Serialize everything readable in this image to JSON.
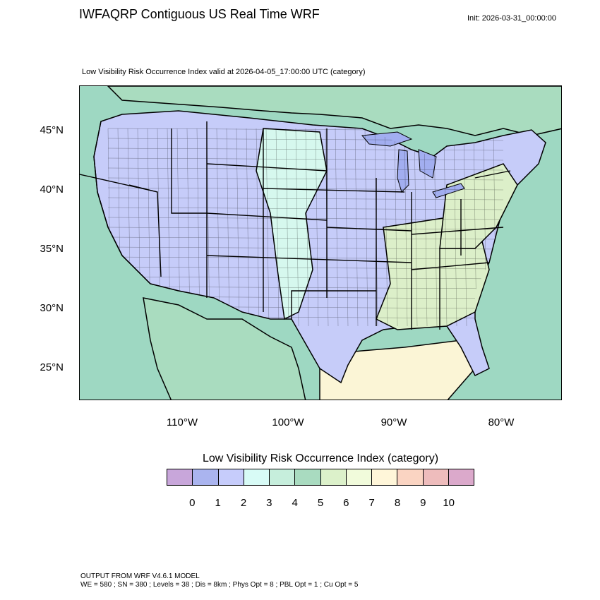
{
  "title": "IWFAQRP Contiguous US Real Time WRF",
  "init": "Init: 2026-03-31_00:00:00",
  "subtitle": "Low Visibility Risk Occurrence Index valid at 2026-04-05_17:00:00 UTC   (category)",
  "map": {
    "lat_labels": [
      "45°N",
      "40°N",
      "35°N",
      "30°N",
      "25°N"
    ],
    "lon_labels": [
      "110°W",
      "100°W",
      "90°W",
      "80°W"
    ],
    "colors": {
      "ocean": "#9ed8c2",
      "land_low": "#c6ccf9",
      "land_mid": "#d6f8ee",
      "green": "#a9dcbf",
      "light_green": "#dcefc9",
      "pale_yellow": "#fbf5d6",
      "orange": "#f7c6a8",
      "lake": "#a2aef0",
      "border": "#000000"
    }
  },
  "colorbar": {
    "title": "Low Visibility Risk Occurrence Index  (category)",
    "labels": [
      "0",
      "1",
      "2",
      "3",
      "4",
      "5",
      "6",
      "7",
      "8",
      "9",
      "10"
    ],
    "colors": [
      "#c8a6da",
      "#aab4ef",
      "#c6ccfb",
      "#d8fbf6",
      "#c6eedc",
      "#a9dbc0",
      "#dcf1ca",
      "#f1fbdb",
      "#fff6d9",
      "#fad4c2",
      "#eebcbc",
      "#dba9cb"
    ]
  },
  "footer": {
    "line1": "OUTPUT FROM WRF V4.6.1 MODEL",
    "line2": "WE = 580 ; SN = 380 ; Levels = 38 ; Dis = 8km ; Phys Opt = 8 ; PBL Opt = 1 ; Cu Opt = 5"
  }
}
